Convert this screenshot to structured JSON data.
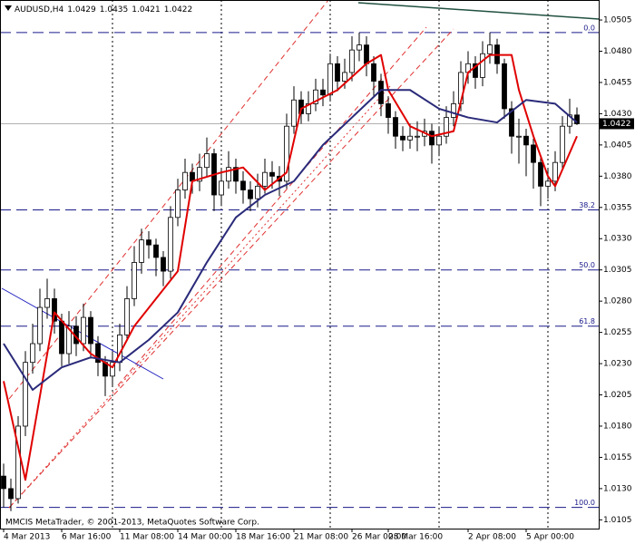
{
  "header": {
    "symbol": "AUDUSD,H4"
  },
  "copyright": "MMCIS MetaTrader, © 2001-2013, MetaQuotes Software Corp.",
  "chart_data": {
    "type": "candlestick",
    "categories": [
      "4 Mar 2013",
      null,
      null,
      null,
      null,
      null,
      null,
      null,
      "6 Mar 16:00",
      null,
      null,
      null,
      null,
      null,
      null,
      null,
      "11 Mar 08:00",
      null,
      null,
      null,
      null,
      null,
      null,
      null,
      "14 Mar 00:00",
      null,
      null,
      null,
      null,
      null,
      null,
      null,
      "18 Mar 16:00",
      null,
      null,
      null,
      null,
      null,
      null,
      null,
      "21 Mar 08:00",
      null,
      null,
      null,
      null,
      null,
      null,
      null,
      "26 Mar 00:00",
      null,
      null,
      null,
      null,
      "28 Mar 16:00",
      null,
      null,
      null,
      null,
      null,
      null,
      null,
      null,
      null,
      null,
      "2 Apr 08:00",
      null,
      null,
      null,
      null,
      null,
      null,
      null,
      "5 Apr 00:00",
      null,
      null,
      null,
      null,
      null,
      null,
      null
    ],
    "open": [
      1.014,
      1.013,
      1.0122,
      1.018,
      1.0231,
      1.0246,
      1.0275,
      1.0282,
      1.0264,
      1.0238,
      1.026,
      1.0246,
      1.0267,
      1.0246,
      1.0231,
      1.022,
      1.0231,
      1.0253,
      1.0282,
      1.0311,
      1.0329,
      1.0325,
      1.0315,
      1.0304,
      1.0347,
      1.0369,
      1.0383,
      1.0376,
      1.0387,
      1.0398,
      1.0365,
      1.0376,
      1.0387,
      1.0376,
      1.0369,
      1.0362,
      1.0372,
      1.0383,
      1.038,
      1.0376,
      1.042,
      1.0441,
      1.043,
      1.0438,
      1.0449,
      1.0445,
      1.047,
      1.0456,
      1.0463,
      1.0481,
      1.0485,
      1.047,
      1.0456,
      1.0438,
      1.0427,
      1.0412,
      1.0409,
      1.0412,
      1.0412,
      1.0416,
      1.0405,
      1.0412,
      1.0427,
      1.0438,
      1.0463,
      1.047,
      1.0459,
      1.0478,
      1.0485,
      1.047,
      1.0434,
      1.0412,
      1.0412,
      1.0405,
      1.0391,
      1.0372,
      1.0376,
      1.0391,
      1.042,
      1.0429
    ],
    "high": [
      1.015,
      1.0138,
      1.0188,
      1.024,
      1.0262,
      1.029,
      1.0298,
      1.029,
      1.027,
      1.0272,
      1.0268,
      1.0278,
      1.0272,
      1.0252,
      1.0236,
      1.024,
      1.0262,
      1.0292,
      1.0324,
      1.0338,
      1.0336,
      1.033,
      1.032,
      1.0356,
      1.0378,
      1.0394,
      1.039,
      1.0398,
      1.0411,
      1.0402,
      1.0386,
      1.04,
      1.0394,
      1.0384,
      1.0376,
      1.0382,
      1.0394,
      1.0392,
      1.0388,
      1.043,
      1.0452,
      1.0448,
      1.0448,
      1.0458,
      1.0458,
      1.0478,
      1.0476,
      1.0474,
      1.0492,
      1.0495,
      1.0492,
      1.0476,
      1.0462,
      1.0444,
      1.0432,
      1.042,
      1.0422,
      1.0424,
      1.0426,
      1.0422,
      1.042,
      1.0436,
      1.0448,
      1.0472,
      1.048,
      1.0476,
      1.0488,
      1.0495,
      1.049,
      1.0474,
      1.044,
      1.0426,
      1.0418,
      1.041,
      1.0396,
      1.0386,
      1.04,
      1.0428,
      1.0442,
      1.0435
    ],
    "low": [
      1.0115,
      1.0112,
      1.0118,
      1.0172,
      1.0222,
      1.024,
      1.0266,
      1.0254,
      1.0228,
      1.023,
      1.0236,
      1.024,
      1.0234,
      1.022,
      1.0204,
      1.0212,
      1.0224,
      1.0248,
      1.0276,
      1.0302,
      1.0314,
      1.03,
      1.0292,
      1.0298,
      1.034,
      1.0362,
      1.0366,
      1.0368,
      1.038,
      1.0352,
      1.0356,
      1.037,
      1.0366,
      1.0358,
      1.0352,
      1.0355,
      1.0366,
      1.037,
      1.0364,
      1.037,
      1.0414,
      1.0422,
      1.0424,
      1.0432,
      1.0436,
      1.044,
      1.0448,
      1.045,
      1.0456,
      1.0472,
      1.046,
      1.0444,
      1.0428,
      1.0414,
      1.0402,
      1.04,
      1.0402,
      1.04,
      1.0404,
      1.039,
      1.0396,
      1.0406,
      1.042,
      1.0432,
      1.0454,
      1.045,
      1.0452,
      1.047,
      1.0462,
      1.0426,
      1.0398,
      1.039,
      1.038,
      1.037,
      1.0356,
      1.0362,
      1.0368,
      1.0386,
      1.0414,
      1.0421
    ],
    "close": [
      1.013,
      1.0122,
      1.018,
      1.0231,
      1.0246,
      1.0275,
      1.0282,
      1.0264,
      1.0238,
      1.026,
      1.0246,
      1.0267,
      1.0246,
      1.0231,
      1.022,
      1.0231,
      1.0253,
      1.0282,
      1.0311,
      1.0329,
      1.0325,
      1.0315,
      1.0304,
      1.0347,
      1.0369,
      1.0383,
      1.0376,
      1.0387,
      1.0398,
      1.0365,
      1.0376,
      1.0387,
      1.0376,
      1.0369,
      1.0362,
      1.0372,
      1.0383,
      1.038,
      1.0376,
      1.042,
      1.0441,
      1.043,
      1.0438,
      1.0449,
      1.0445,
      1.047,
      1.0456,
      1.0463,
      1.0481,
      1.0485,
      1.047,
      1.0456,
      1.0438,
      1.0427,
      1.0412,
      1.0409,
      1.0412,
      1.0412,
      1.0416,
      1.0405,
      1.0412,
      1.0427,
      1.0438,
      1.0463,
      1.047,
      1.0459,
      1.0478,
      1.0485,
      1.047,
      1.0434,
      1.0412,
      1.0412,
      1.0405,
      1.0391,
      1.0372,
      1.0376,
      1.0391,
      1.042,
      1.0429,
      1.0422
    ],
    "series": [
      {
        "color": "#e00000",
        "x": [
          0,
          3,
          7,
          12,
          15,
          18,
          24,
          26,
          30,
          33,
          36,
          39,
          41,
          46,
          50,
          52,
          53,
          56,
          59,
          62,
          64,
          67,
          70,
          71,
          73,
          75,
          76,
          79
        ],
        "values": [
          1.0216,
          1.0137,
          1.0271,
          1.0238,
          1.0227,
          1.026,
          1.0304,
          1.0376,
          1.0383,
          1.0387,
          1.0369,
          1.0383,
          1.0434,
          1.0449,
          1.047,
          1.0477,
          1.0449,
          1.042,
          1.0412,
          1.0416,
          1.0463,
          1.0477,
          1.0477,
          1.0449,
          1.0412,
          1.038,
          1.0372,
          1.0412
        ]
      },
      {
        "color": "#2a2a7a",
        "x": [
          0,
          4,
          8,
          12,
          16,
          20,
          24,
          28,
          32,
          36,
          40,
          44,
          48,
          52,
          56,
          60,
          64,
          68,
          72,
          76,
          79
        ],
        "values": [
          1.0246,
          1.0209,
          1.0227,
          1.0235,
          1.0231,
          1.0249,
          1.0271,
          1.0311,
          1.0347,
          1.0365,
          1.0376,
          1.0405,
          1.0427,
          1.0449,
          1.0449,
          1.0434,
          1.0427,
          1.0423,
          1.0441,
          1.0438,
          1.0423
        ]
      }
    ],
    "fib_levels": [
      {
        "label": "0.0",
        "price": 1.0495
      },
      {
        "label": "38.2",
        "price": 1.0353
      },
      {
        "label": "50.0",
        "price": 1.0305
      },
      {
        "label": "61.8",
        "price": 1.026
      },
      {
        "label": "100.0",
        "price": 1.0115
      }
    ],
    "ylim": [
      1.0098,
      1.0521
    ],
    "yticks": [
      1.0505,
      {
        "value": 1.048,
        "label": "1.0480"
      },
      1.0455,
      {
        "value": 1.043,
        "label": "1.0430"
      },
      1.0405,
      {
        "value": 1.038,
        "label": "1.0380"
      },
      1.0355,
      {
        "value": 1.033,
        "label": "1.0330"
      },
      1.0305,
      {
        "value": 1.028,
        "label": "1.0280"
      },
      1.0255,
      {
        "value": 1.023,
        "label": "1.0230"
      },
      1.0205,
      {
        "value": 1.018,
        "label": "1.0180"
      },
      1.0155,
      {
        "value": 1.013,
        "label": "1.0130"
      },
      1.0105
    ]
  }
}
